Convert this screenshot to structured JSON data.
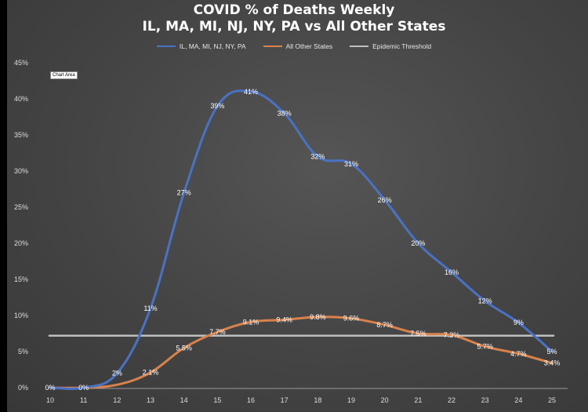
{
  "chart_data": {
    "type": "line",
    "title": "COVID % of Deaths Weekly",
    "subtitle": "IL, MA, MI, NJ, NY, PA vs All Other States",
    "chart_area_label": "Chart Area",
    "x": [
      10,
      11,
      12,
      13,
      14,
      15,
      16,
      17,
      18,
      19,
      20,
      21,
      22,
      23,
      24,
      25
    ],
    "ylim": [
      0,
      45
    ],
    "yticks": [
      "0%",
      "5%",
      "10%",
      "15%",
      "20%",
      "25%",
      "30%",
      "35%",
      "40%",
      "45%"
    ],
    "grid": false,
    "legend_position": "top",
    "series": [
      {
        "name": "IL, MA, MI, NJ, NY, PA",
        "color": "#4a72c4",
        "values": [
          0,
          0,
          2,
          11,
          27,
          39,
          41,
          38,
          32,
          31,
          26,
          20,
          16,
          12,
          9,
          5
        ],
        "labels": [
          "0%",
          "0%",
          "2%",
          "11%",
          "27%",
          "39%",
          "41%",
          "38%",
          "32%",
          "31%",
          "26%",
          "20%",
          "16%",
          "12%",
          "9%",
          "5%"
        ]
      },
      {
        "name": "All Other States",
        "color": "#d9824b",
        "values": [
          0,
          0,
          0.4,
          2.1,
          5.5,
          7.7,
          9.1,
          9.4,
          9.8,
          9.6,
          8.7,
          7.5,
          7.3,
          5.7,
          4.7,
          3.4
        ],
        "labels": [
          "",
          "",
          "",
          "2.1%",
          "5.5%",
          "7.7%",
          "9.1%",
          "9.4%",
          "9.8%",
          "9.6%",
          "8.7%",
          "7.5%",
          "7.3%",
          "5.7%",
          "4.7%",
          "3.4%"
        ]
      },
      {
        "name": "Epidemic Threshold",
        "color": "#bfbfbf",
        "values": [
          7.2,
          7.2,
          7.2,
          7.2,
          7.2,
          7.2,
          7.2,
          7.2,
          7.2,
          7.2,
          7.2,
          7.2,
          7.2,
          7.2,
          7.2,
          7.2
        ]
      }
    ]
  }
}
